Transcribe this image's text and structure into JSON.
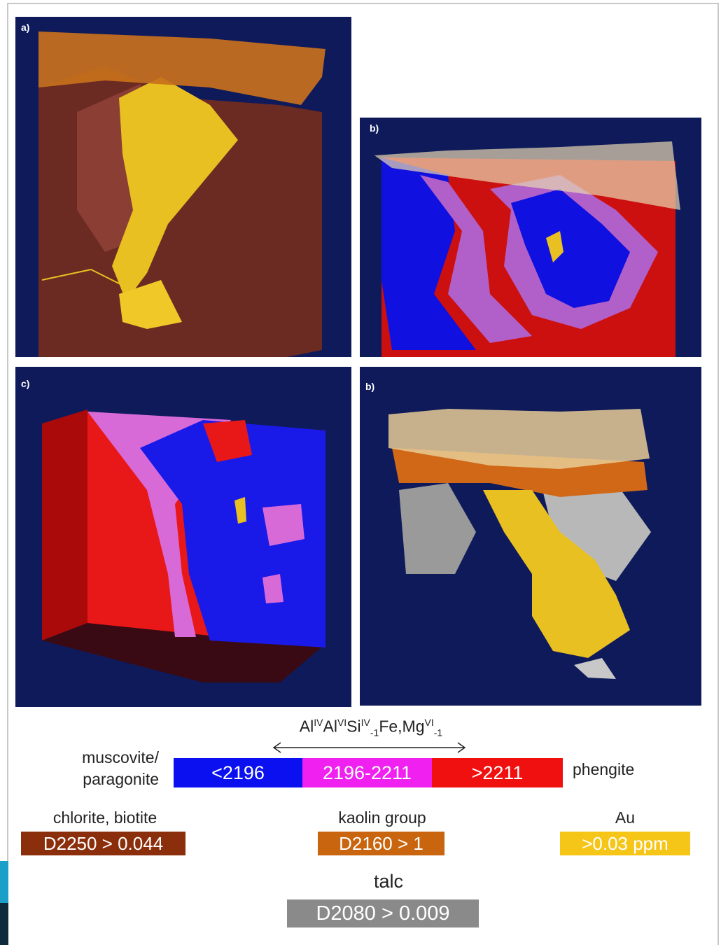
{
  "panels": [
    {
      "label": "a)"
    },
    {
      "label": "b)"
    },
    {
      "label": "c)"
    },
    {
      "label": "b)"
    }
  ],
  "legend": {
    "formula": [
      {
        "base": "Al",
        "sup": "IV"
      },
      {
        "base": "Al",
        "sup": "VI"
      },
      {
        "base": "Si",
        "sup": "IV",
        "sub": "-1"
      },
      {
        "base": "Fe,Mg",
        "sup": "VI",
        "sub": "-1"
      }
    ],
    "left_label": [
      "muscovite/",
      "paragonite"
    ],
    "right_label": "phengite",
    "scale": [
      "<2196",
      "2196-2211",
      ">2211"
    ],
    "items": [
      {
        "name": "chlorite, biotite",
        "threshold": "D2250 > 0.044"
      },
      {
        "name": "kaolin group",
        "threshold": "D2160 > 1"
      },
      {
        "name": "Au",
        "threshold": ">0.03 ppm"
      },
      {
        "name": "talc",
        "threshold": "D2080 > 0.009"
      }
    ]
  }
}
